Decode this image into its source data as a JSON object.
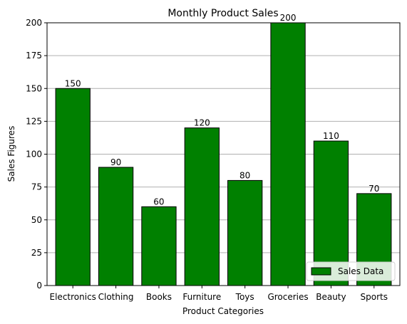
{
  "chart_data": {
    "type": "bar",
    "title": "Monthly Product Sales",
    "xlabel": "Product Categories",
    "ylabel": "Sales Figures",
    "categories": [
      "Electronics",
      "Clothing",
      "Books",
      "Furniture",
      "Toys",
      "Groceries",
      "Beauty",
      "Sports"
    ],
    "series": [
      {
        "name": "Sales Data",
        "values": [
          150,
          90,
          60,
          120,
          80,
          200,
          110,
          70
        ]
      }
    ],
    "ylim": [
      0,
      200
    ],
    "yticks": [
      0,
      25,
      50,
      75,
      100,
      125,
      150,
      175,
      200
    ],
    "grid": "horizontal",
    "legend_position": "bottom-right",
    "bar_color": "#008000",
    "bar_edge_color": "#000000",
    "grid_color": "#b0b0b0"
  }
}
